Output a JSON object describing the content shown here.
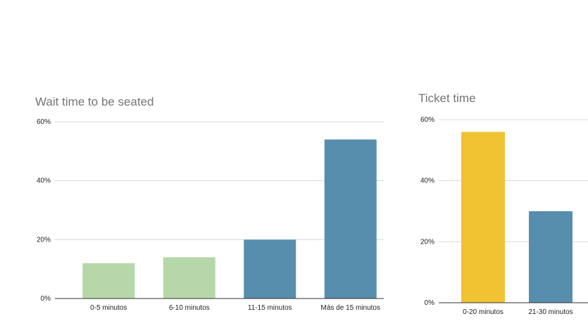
{
  "chart_data": [
    {
      "type": "bar",
      "title": "Wait time to be seated",
      "xlabel": "",
      "ylabel": "",
      "ylim": [
        0,
        60
      ],
      "yticks": [
        "0%",
        "20%",
        "40%",
        "60%"
      ],
      "categories": [
        "0-5 minutos",
        "6-10 minutos",
        "11-15 minutos",
        "Más de 15 minutos"
      ],
      "values": [
        12,
        14,
        20,
        54
      ],
      "colors": [
        "#b6d7a8",
        "#b6d7a8",
        "#588ead",
        "#588ead"
      ],
      "grid": true,
      "legend": "none"
    },
    {
      "type": "bar",
      "title": "Ticket time",
      "xlabel": "",
      "ylabel": "",
      "ylim": [
        0,
        60
      ],
      "yticks": [
        "0%",
        "20%",
        "40%",
        "60%"
      ],
      "categories": [
        "0-20 minutos",
        "21-30 minutos"
      ],
      "values": [
        56,
        30
      ],
      "colors": [
        "#f1c232",
        "#588ead"
      ],
      "grid": true,
      "legend": "none"
    }
  ]
}
